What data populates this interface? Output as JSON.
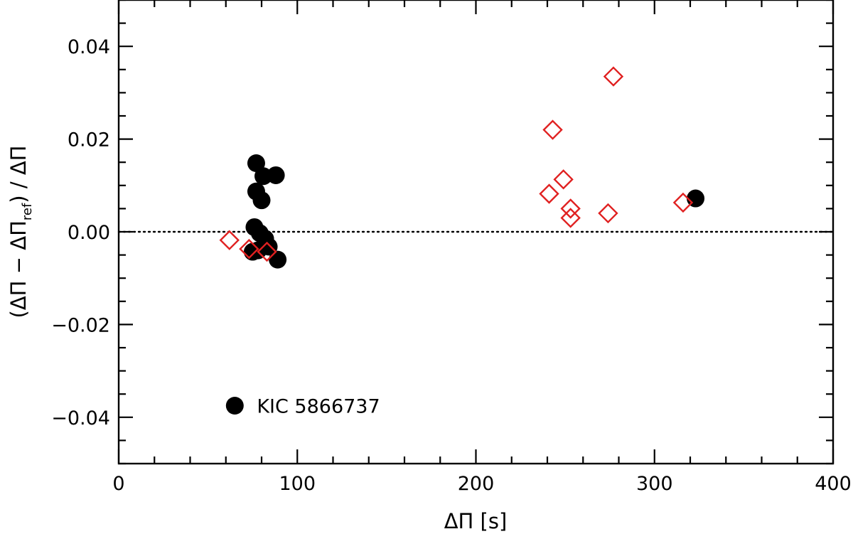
{
  "chart_data": {
    "type": "scatter",
    "xlabel": "ΔΠ [s]",
    "ylabel": "(ΔΠ − ΔΠref) / ΔΠ",
    "ylabel_parts": {
      "open": "(ΔΠ − ΔΠ",
      "sub": "ref",
      "close": ") / ΔΠ"
    },
    "xlim": [
      0,
      400
    ],
    "ylim": [
      -0.05,
      0.05
    ],
    "x_ticks": [
      0,
      100,
      200,
      300,
      400
    ],
    "y_ticks": [
      -0.04,
      -0.02,
      0.0,
      0.02,
      0.04
    ],
    "x_tick_labels": [
      "0",
      "100",
      "200",
      "300",
      "400"
    ],
    "y_tick_labels": [
      "−0.04",
      "−0.02",
      "0.00",
      "0.02",
      "0.04"
    ],
    "reference_line": {
      "y": 0,
      "style": "dotted"
    },
    "series": [
      {
        "name": "KIC 5866737",
        "marker": "filled-circle",
        "color": "#000000",
        "points": [
          {
            "x": 77,
            "y": 0.0148
          },
          {
            "x": 81,
            "y": 0.012
          },
          {
            "x": 88,
            "y": 0.0122
          },
          {
            "x": 77,
            "y": 0.0087
          },
          {
            "x": 80,
            "y": 0.0068
          },
          {
            "x": 76,
            "y": 0.001
          },
          {
            "x": 79,
            "y": -0.0003
          },
          {
            "x": 82,
            "y": -0.0015
          },
          {
            "x": 84,
            "y": -0.0032
          },
          {
            "x": 75,
            "y": -0.0043
          },
          {
            "x": 78,
            "y": -0.004
          },
          {
            "x": 89,
            "y": -0.006
          },
          {
            "x": 323,
            "y": 0.0072
          }
        ]
      },
      {
        "marker": "open-diamond",
        "color": "#e02020",
        "points": [
          {
            "x": 62,
            "y": -0.0018
          },
          {
            "x": 73,
            "y": -0.0037
          },
          {
            "x": 83,
            "y": -0.0043
          },
          {
            "x": 243,
            "y": 0.022
          },
          {
            "x": 277,
            "y": 0.0335
          },
          {
            "x": 249,
            "y": 0.0113
          },
          {
            "x": 241,
            "y": 0.0082
          },
          {
            "x": 253,
            "y": 0.005
          },
          {
            "x": 253,
            "y": 0.003
          },
          {
            "x": 274,
            "y": 0.004
          },
          {
            "x": 316,
            "y": 0.0063
          }
        ]
      }
    ],
    "legend": {
      "position": "bottom-left",
      "label": "KIC 5866737",
      "x": 65,
      "y": -0.0375
    }
  }
}
